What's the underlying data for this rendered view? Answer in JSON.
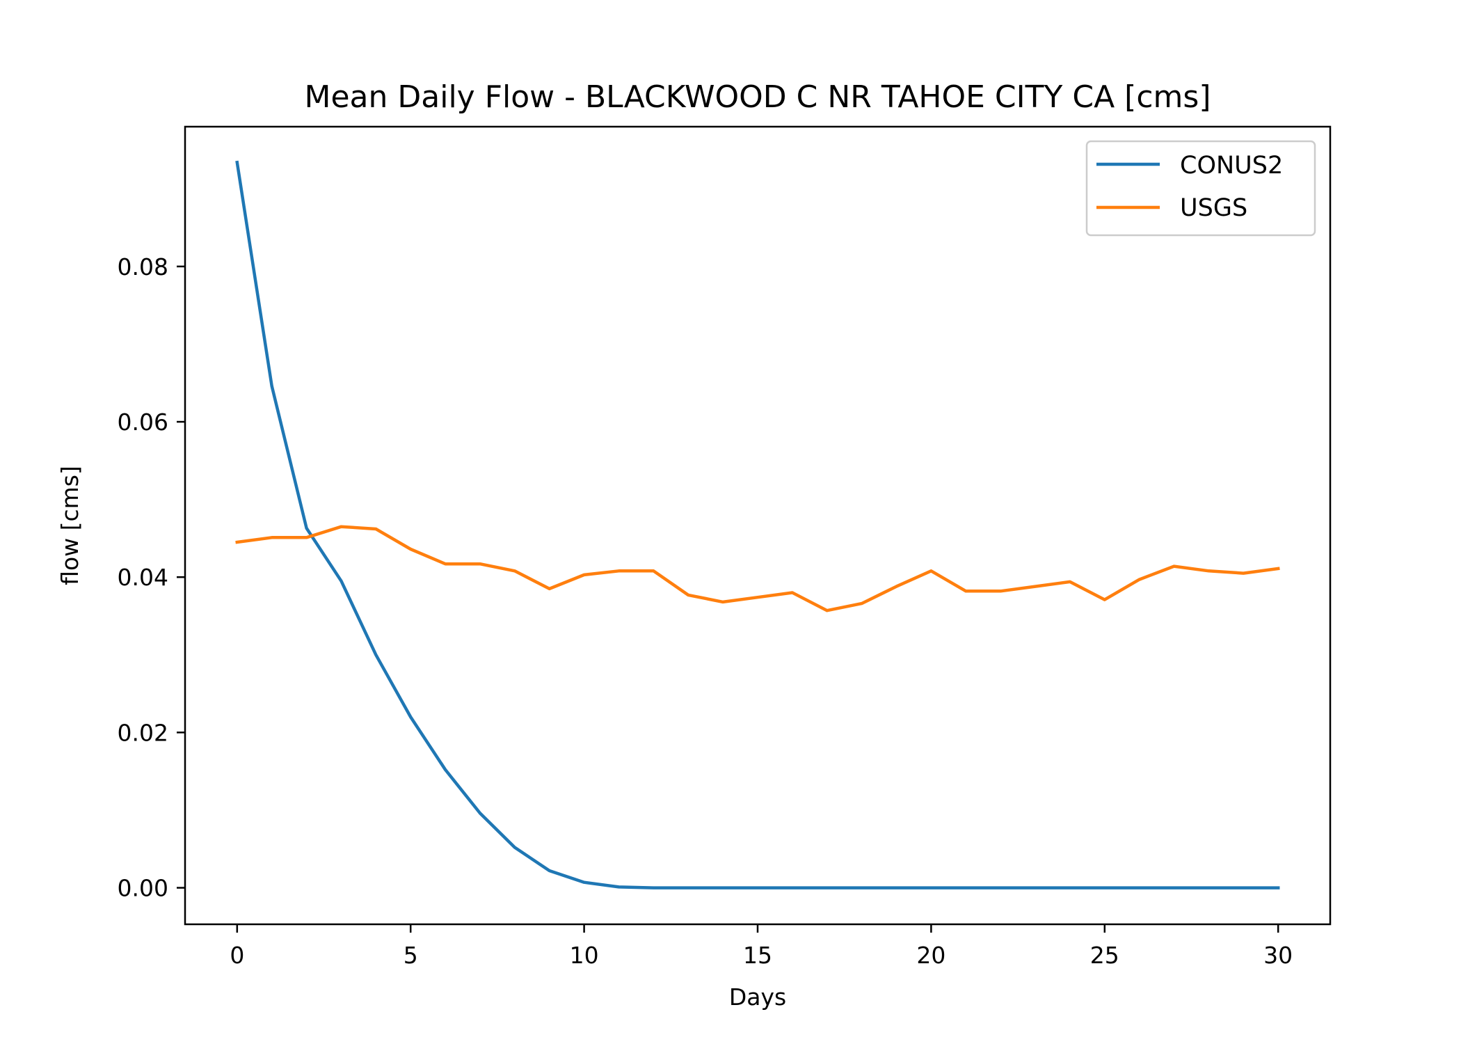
{
  "chart_data": {
    "type": "line",
    "title": "Mean Daily Flow - BLACKWOOD C NR TAHOE CITY CA [cms]",
    "xlabel": "Days",
    "ylabel": "flow [cms]",
    "xlim": [
      -1.5,
      31.5
    ],
    "ylim": [
      -0.0047,
      0.098
    ],
    "xticks": [
      0,
      5,
      10,
      15,
      20,
      25,
      30
    ],
    "xtick_labels": [
      "0",
      "5",
      "10",
      "15",
      "20",
      "25",
      "30"
    ],
    "yticks": [
      0.0,
      0.02,
      0.04,
      0.06,
      0.08
    ],
    "ytick_labels": [
      "0.00",
      "0.02",
      "0.04",
      "0.06",
      "0.08"
    ],
    "grid": false,
    "legend_position": "top-right",
    "x": [
      0,
      1,
      2,
      3,
      4,
      5,
      6,
      7,
      8,
      9,
      10,
      11,
      12,
      13,
      14,
      15,
      16,
      17,
      18,
      19,
      20,
      21,
      22,
      23,
      24,
      25,
      26,
      27,
      28,
      29,
      30
    ],
    "series": [
      {
        "name": "CONUS2",
        "color": "#1f77b4",
        "values": [
          0.0934,
          0.0646,
          0.0463,
          0.0395,
          0.03,
          0.022,
          0.0152,
          0.0096,
          0.0052,
          0.0022,
          0.0007,
          0.0001,
          0.0,
          0.0,
          0.0,
          0.0,
          0.0,
          0.0,
          0.0,
          0.0,
          0.0,
          0.0,
          0.0,
          0.0,
          0.0,
          0.0,
          0.0,
          0.0,
          0.0,
          0.0,
          0.0
        ]
      },
      {
        "name": "USGS",
        "color": "#ff7f0e",
        "values": [
          0.0445,
          0.0451,
          0.0451,
          0.0465,
          0.0462,
          0.0436,
          0.0417,
          0.0417,
          0.0408,
          0.0385,
          0.0403,
          0.0408,
          0.0408,
          0.0377,
          0.0368,
          0.0374,
          0.038,
          0.0357,
          0.0366,
          0.0388,
          0.0408,
          0.0382,
          0.0382,
          0.0388,
          0.0394,
          0.0371,
          0.0397,
          0.0414,
          0.0408,
          0.0405,
          0.0411
        ]
      }
    ]
  }
}
